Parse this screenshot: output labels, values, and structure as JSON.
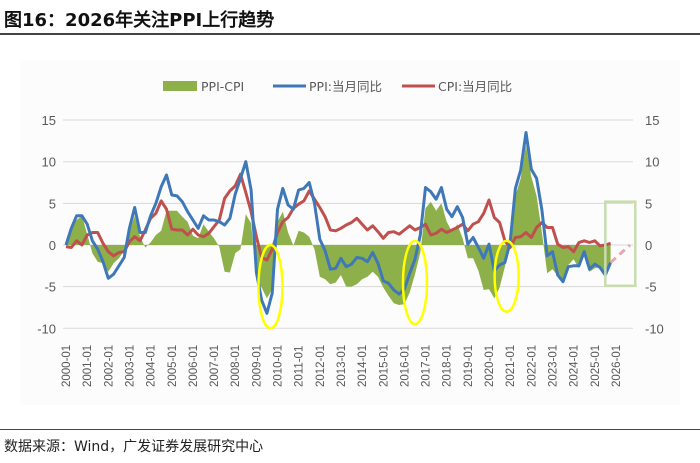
{
  "title": "图16：2026年关注PPI上行趋势",
  "source": "数据来源：Wind，广发证券发展研究中心",
  "chart_data": {
    "type": "line",
    "title": "图16：2026年关注PPI上行趋势",
    "xlabel": "",
    "ylabel": "",
    "ylim": [
      -10,
      15
    ],
    "y_ticks": [
      "15",
      "10",
      "5",
      "0",
      "-5",
      "-10"
    ],
    "y_tick_values": [
      15,
      10,
      5,
      0,
      -5,
      -10
    ],
    "x_ticks": [
      "2000-01",
      "2001-01",
      "2002-01",
      "2003-01",
      "2004-01",
      "2005-01",
      "2006-01",
      "2007-01",
      "2008-01",
      "2009-01",
      "2010-01",
      "2011-01",
      "2012-01",
      "2013-01",
      "2014-01",
      "2015-01",
      "2016-01",
      "2017-01",
      "2018-01",
      "2019-01",
      "2020-01",
      "2021-01",
      "2022-01",
      "2023-01",
      "2024-01",
      "2025-01",
      "2026-01"
    ],
    "dual_y_axis_mirrored": true,
    "grid": "horizontal",
    "legend_position": "top",
    "sample_months": [
      "01",
      "04",
      "07",
      "10"
    ],
    "series": [
      {
        "name": "PPI-CPI",
        "kind": "area",
        "color": "#8db04a",
        "by_year": {
          "2000": [
            0.2,
            2.3,
            3,
            3.5
          ],
          "2001": [
            1.3,
            -1,
            -2,
            -2.2
          ],
          "2002": [
            -3.2,
            -2.2,
            -1.6,
            -0.7
          ],
          "2003": [
            1.6,
            3.5,
            1,
            -0.3
          ],
          "2004": [
            0.3,
            1.2,
            1.7,
            4.1
          ],
          "2005": [
            4.1,
            4.1,
            3.4,
            2.8
          ],
          "2006": [
            1.1,
            0.8,
            2.5,
            1.6
          ],
          "2007": [
            0.8,
            -0.2,
            -3.2,
            -3.3
          ],
          "2008": [
            -1,
            -0.5,
            3.7,
            2.6
          ],
          "2009": [
            -4.3,
            -5.1,
            -6.4,
            -5.3
          ],
          "2010": [
            2.8,
            4,
            1.5,
            -0.1
          ],
          "2011": [
            1.7,
            1.5,
            1,
            -0.5
          ],
          "2012": [
            -3.8,
            -4.1,
            -4.7,
            -4.5
          ],
          "2013": [
            -3.6,
            -5,
            -5,
            -4.7
          ],
          "2014": [
            -4.1,
            -3.8,
            -3.2,
            -3.8
          ],
          "2015": [
            -5.1,
            -6.1,
            -7,
            -7.2
          ],
          "2016": [
            -7.1,
            -5.7,
            -3.5,
            -0.9
          ],
          "2017": [
            4.4,
            5.2,
            4.1,
            5
          ],
          "2018": [
            2.8,
            1.6,
            2.5,
            0.8
          ],
          "2019": [
            -1.6,
            -1.6,
            -3.1,
            -5.4
          ],
          "2020": [
            -5.3,
            -6.4,
            -5.1,
            -2.6
          ],
          "2021": [
            0.6,
            5.9,
            8,
            12
          ],
          "2022": [
            8.2,
            5.9,
            1.5,
            -3.4
          ],
          "2023": [
            -2.9,
            -3.7,
            -4.1,
            -2.4
          ],
          "2024": [
            -1.7,
            -2.8,
            -1.3,
            -3.2
          ],
          "2025": [
            -2.8,
            -2.6,
            -3.6,
            -2.3
          ]
        }
      },
      {
        "name": "PPI:当月同比",
        "kind": "line",
        "color": "#3f78b8",
        "by_year": {
          "2000": [
            0,
            2,
            3.5,
            3.5
          ],
          "2001": [
            2.5,
            0.5,
            -0.5,
            -2
          ],
          "2002": [
            -4,
            -3.5,
            -2.5,
            -1.5
          ],
          "2003": [
            2,
            4.5,
            1.5,
            1.5
          ],
          "2004": [
            3.5,
            5,
            7,
            8.4
          ],
          "2005": [
            6,
            5.9,
            5.2,
            4
          ],
          "2006": [
            3,
            2,
            3.5,
            3
          ],
          "2007": [
            3,
            2.8,
            2.4,
            3.2
          ],
          "2008": [
            6.1,
            8,
            10,
            6.6
          ],
          "2009": [
            -3.3,
            -6.6,
            -8.2,
            -5.8
          ],
          "2010": [
            4.3,
            6.8,
            4.8,
            4.3
          ],
          "2011": [
            6.6,
            6.8,
            7.5,
            5
          ],
          "2012": [
            0.7,
            -0.7,
            -2.9,
            -2.8
          ],
          "2013": [
            -1.6,
            -2.6,
            -2.3,
            -1.5
          ],
          "2014": [
            -1.6,
            -2,
            -0.9,
            -2.2
          ],
          "2015": [
            -4.3,
            -4.6,
            -5.4,
            -5.9
          ],
          "2016": [
            -5.3,
            -3.4,
            -1.7,
            1.2
          ],
          "2017": [
            6.9,
            6.4,
            5.5,
            6.9
          ],
          "2018": [
            4.3,
            3.4,
            4.6,
            3.3
          ],
          "2019": [
            0.1,
            0.9,
            -0.3,
            -1.6
          ],
          "2020": [
            0.1,
            -3.1,
            -2.4,
            -2.1
          ],
          "2021": [
            0.3,
            6.8,
            9,
            13.5
          ],
          "2022": [
            9.1,
            8,
            4.2,
            -1.3
          ],
          "2023": [
            -0.8,
            -3.6,
            -4.4,
            -2.6
          ],
          "2024": [
            -2.5,
            -2.5,
            -0.8,
            -2.9
          ],
          "2025": [
            -2.3,
            -2.7,
            -3.6,
            -2.1
          ]
        }
      },
      {
        "name": "CPI:当月同比",
        "kind": "line",
        "color": "#c0504d",
        "by_year": {
          "2000": [
            -0.2,
            -0.3,
            0.5,
            0
          ],
          "2001": [
            1.2,
            1.5,
            1.5,
            0.2
          ],
          "2002": [
            -0.8,
            -1.3,
            -0.9,
            -0.8
          ],
          "2003": [
            0.4,
            1,
            0.5,
            1.8
          ],
          "2004": [
            3.2,
            3.8,
            5.3,
            4.3
          ],
          "2005": [
            1.9,
            1.8,
            1.8,
            1.2
          ],
          "2006": [
            1.9,
            1.2,
            1,
            1.4
          ],
          "2007": [
            2.2,
            3,
            5.6,
            6.5
          ],
          "2008": [
            7.1,
            8.5,
            6.3,
            4
          ],
          "2009": [
            1,
            -1.5,
            -1.8,
            -0.5
          ],
          "2010": [
            1.5,
            2.8,
            3.3,
            4.4
          ],
          "2011": [
            4.9,
            5.3,
            6.5,
            5.5
          ],
          "2012": [
            4.5,
            3.4,
            1.8,
            1.7
          ],
          "2013": [
            2,
            2.4,
            2.7,
            3.2
          ],
          "2014": [
            2.5,
            1.8,
            2.3,
            1.6
          ],
          "2015": [
            0.8,
            1.5,
            1.6,
            1.3
          ],
          "2016": [
            1.8,
            2.3,
            1.8,
            2.1
          ],
          "2017": [
            2.5,
            1.2,
            1.4,
            1.9
          ],
          "2018": [
            1.5,
            1.8,
            2.1,
            2.5
          ],
          "2019": [
            1.7,
            2.5,
            2.8,
            3.8
          ],
          "2020": [
            5.4,
            3.3,
            2.7,
            0.5
          ],
          "2021": [
            -0.3,
            0.9,
            1,
            1.5
          ],
          "2022": [
            0.9,
            2.1,
            2.7,
            2.1
          ],
          "2023": [
            2.1,
            0.1,
            -0.3,
            -0.2
          ],
          "2024": [
            -0.8,
            0.3,
            0.5,
            0.3
          ],
          "2025": [
            0.5,
            -0.1,
            0,
            0.2
          ]
        }
      }
    ],
    "forecast": {
      "kind": "dashed-line",
      "color": "#e8a7ad",
      "points": [
        [
          "2025-10",
          -2.1
        ],
        [
          "2026-09",
          0
        ]
      ]
    },
    "annotations": [
      {
        "kind": "ellipse",
        "color": "#ffff00",
        "center": "2009-09",
        "y_range": [
          -10,
          0
        ]
      },
      {
        "kind": "ellipse",
        "color": "#ffff00",
        "center": "2016-07",
        "y_range": [
          -9.5,
          0.5
        ]
      },
      {
        "kind": "ellipse",
        "color": "#ffff00",
        "center": "2020-11",
        "y_range": [
          -8,
          0.5
        ]
      },
      {
        "kind": "rectangle",
        "color": "#c9dcb0",
        "x_range": [
          "2025-07",
          "2026-12"
        ],
        "y_range": [
          -4.9,
          5.2
        ]
      }
    ]
  }
}
